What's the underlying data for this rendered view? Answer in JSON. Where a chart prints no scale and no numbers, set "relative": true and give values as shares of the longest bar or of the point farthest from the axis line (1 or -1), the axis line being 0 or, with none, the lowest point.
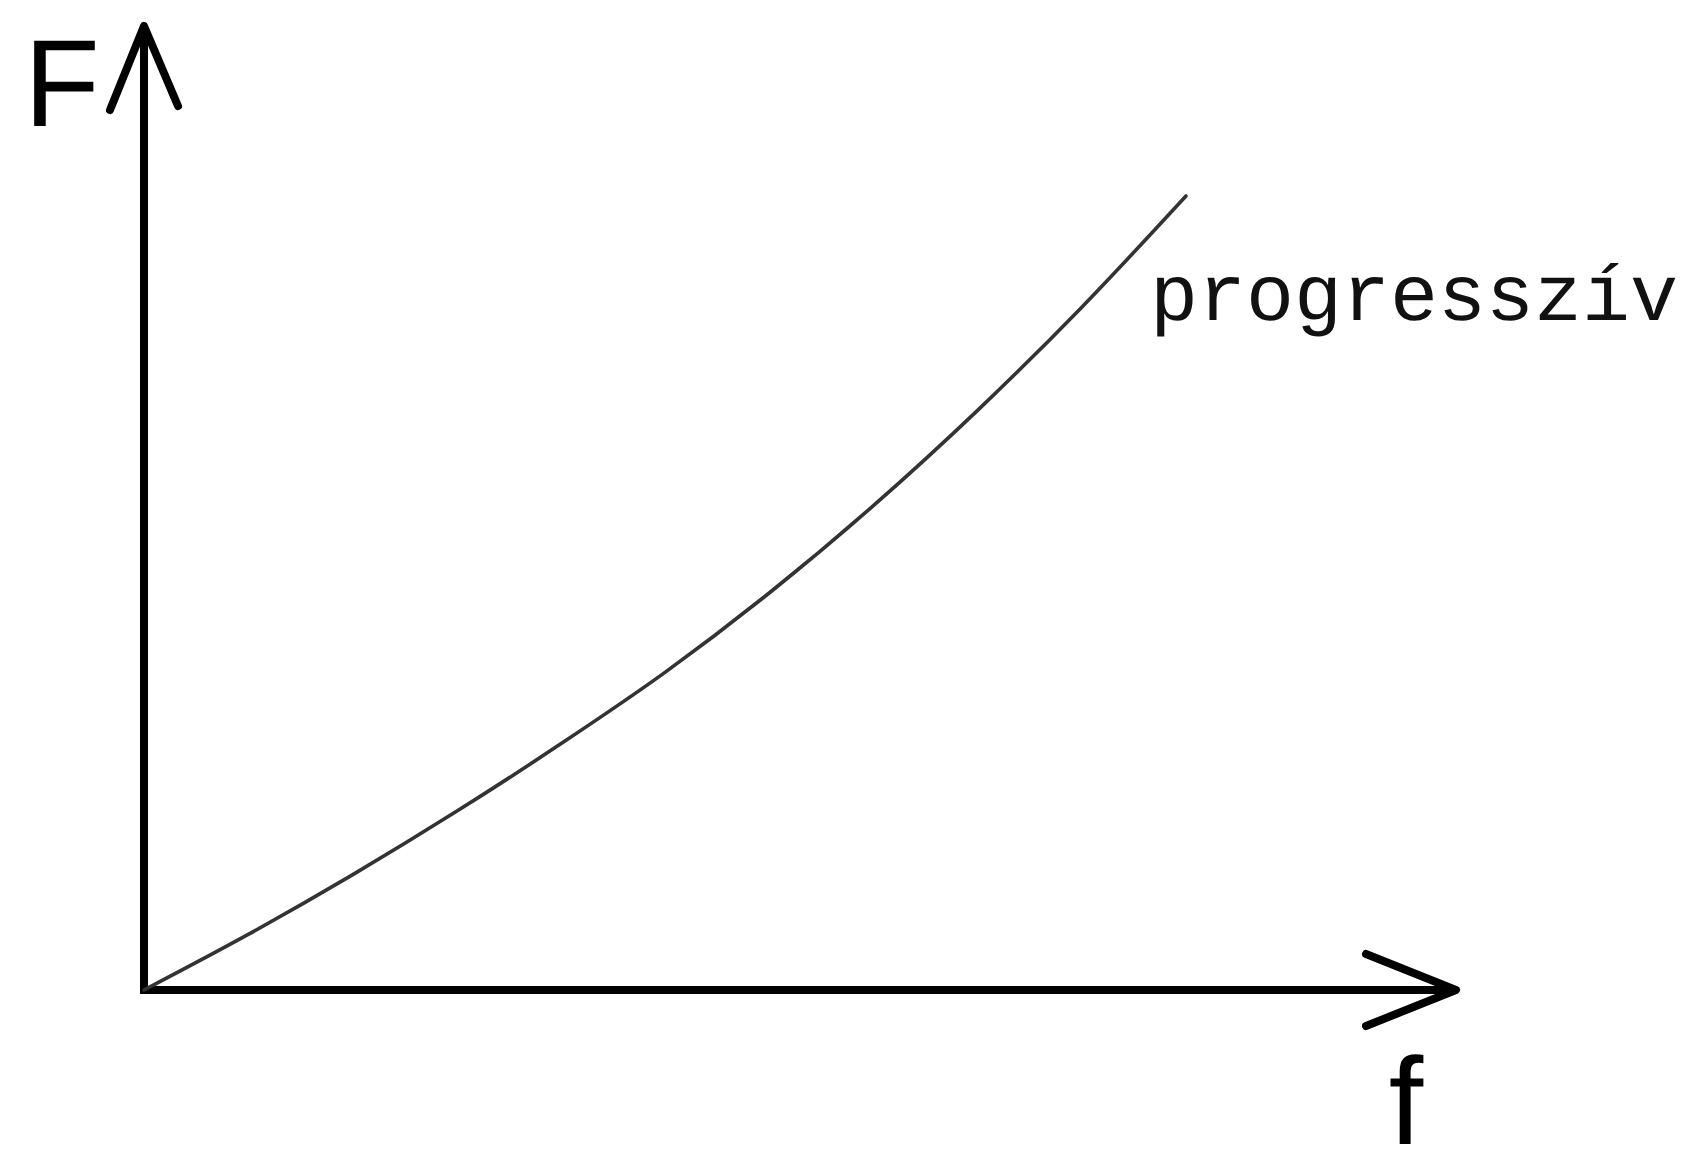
{
  "chart_data": {
    "type": "line",
    "relative": true,
    "xlabel": "f",
    "ylabel": "F",
    "categories": [
      null,
      null,
      null,
      null,
      null,
      null,
      null,
      null,
      null,
      null,
      null
    ],
    "series": [
      {
        "name": "progresszív",
        "color": "#333333",
        "values": [
          0,
          0.07,
          0.145,
          0.225,
          0.31,
          0.4,
          0.5,
          0.61,
          0.73,
          0.86,
          1
        ]
      }
    ]
  }
}
